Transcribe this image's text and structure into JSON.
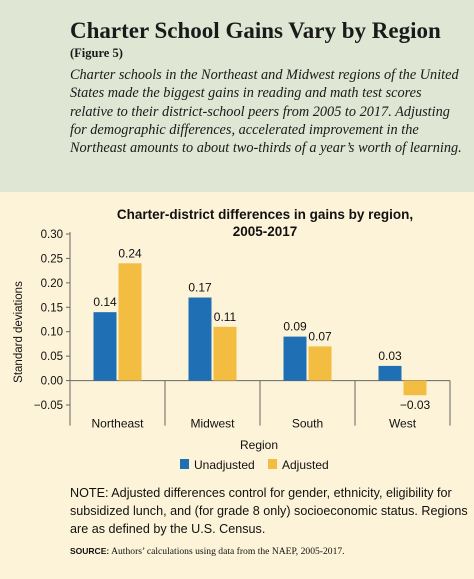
{
  "figure": {
    "title": "Charter School Gains Vary by Region",
    "label": "(Figure 5)",
    "description": "Charter schools in the Northeast and Midwest regions of the United States made the biggest gains in reading and math test scores relative to their district-school peers from 2005 to 2017. Adjusting for demographic differences, accelerated improvement in the Northeast amounts to about two-thirds of a year’s worth of learning."
  },
  "note": "NOTE: Adjusted differences control for gender, ethnicity, eligibility for subsidized lunch, and (for grade 8 only) socioeconomic status. Regions are as defined by the U.S. Census.",
  "source": {
    "label": "SOURCE:",
    "text": "Authors’ calculations using data from the NAEP, 2005-2017."
  },
  "chart_data": {
    "type": "bar",
    "title": "Charter-district differences in gains by region, 2005-2017",
    "title_lines": [
      "Charter-district differences in gains by region,",
      "2005-2017"
    ],
    "xlabel": "Region",
    "ylabel": "Standard deviations",
    "categories": [
      "Northeast",
      "Midwest",
      "South",
      "West"
    ],
    "series": [
      {
        "name": "Unadjusted",
        "values": [
          0.14,
          0.17,
          0.09,
          0.03
        ],
        "labels": [
          "0.14",
          "0.17",
          "0.09",
          "0.03"
        ],
        "color": "#1f6fb5"
      },
      {
        "name": "Adjusted",
        "values": [
          0.24,
          0.11,
          0.07,
          -0.03
        ],
        "labels": [
          "0.24",
          "0.11",
          "0.07",
          "−0.03"
        ],
        "color": "#f2bd41"
      }
    ],
    "ylim": [
      -0.05,
      0.3
    ],
    "yticks": [
      -0.05,
      0,
      0.05,
      0.1,
      0.15,
      0.2,
      0.25,
      0.3
    ],
    "ytick_labels": [
      "−0.05",
      "0.00",
      "0.05",
      "0.10",
      "0.15",
      "0.20",
      "0.25",
      "0.30"
    ],
    "grid": false,
    "legend_position": "bottom"
  }
}
